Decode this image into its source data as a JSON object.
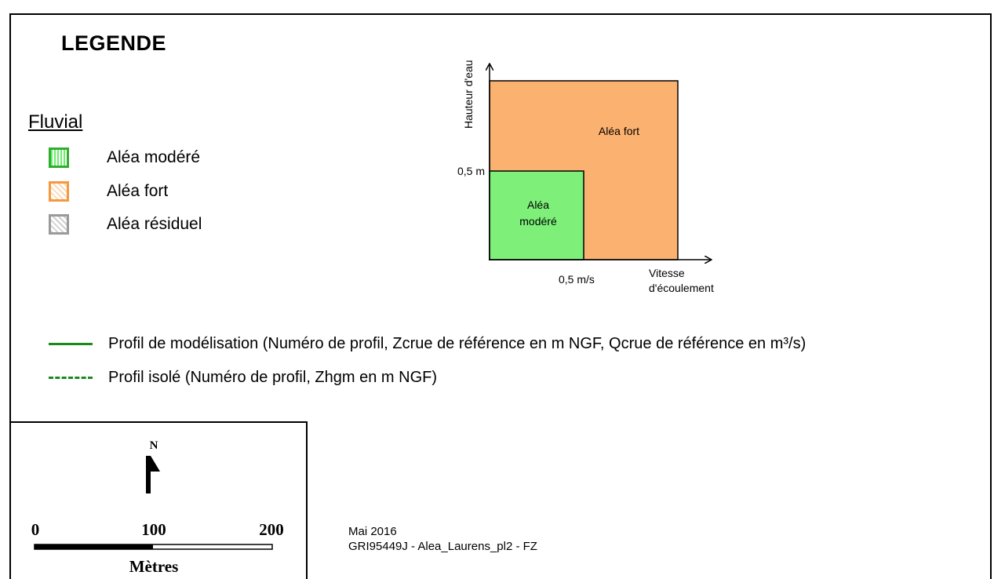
{
  "legend": {
    "title": "LEGENDE",
    "section": "Fluvial",
    "items": [
      {
        "label": "Aléa modéré",
        "color": "#6aef6a",
        "border": "#2fae2f"
      },
      {
        "label": "Aléa fort",
        "color": "#fbd9b4",
        "border": "#f4993f"
      },
      {
        "label": "Aléa résiduel",
        "color": "#d0d0d0",
        "border": "#9a9a9a"
      }
    ]
  },
  "diagram": {
    "y_axis_label": "Hauteur d'eau",
    "x_axis_label_line1": "Vitesse",
    "x_axis_label_line2": "d'écoulement",
    "y_threshold_label": "0,5 m",
    "x_threshold_label": "0,5 m/s",
    "fort_label": "Aléa fort",
    "modere_label_line1": "Aléa",
    "modere_label_line2": "modéré",
    "fort_color": "#fbb16f",
    "modere_color": "#7ef07a"
  },
  "profiles": [
    {
      "style": "solid",
      "label": "Profil de modélisation (Numéro de profil, Zcrue de référence en m NGF, Qcrue de référence en m³/s)"
    },
    {
      "style": "dashed",
      "label": "Profil isolé (Numéro de profil, Zhgm en m NGF)"
    }
  ],
  "scale": {
    "north": "N",
    "ticks": [
      "0",
      "100",
      "200"
    ],
    "unit": "Mètres"
  },
  "footer": {
    "date": "Mai 2016",
    "reference": "GRI95449J - Alea_Laurens_pl2 - FZ"
  }
}
